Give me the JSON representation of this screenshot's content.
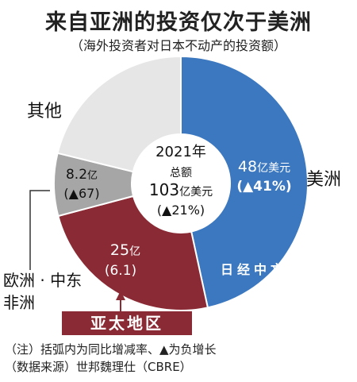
{
  "header": {
    "title": "来自亚洲的投资仅次于美洲",
    "subtitle": "（海外投资者对日本不动产的投资额）"
  },
  "chart_data": {
    "type": "donut",
    "title": "来自亚洲的投资仅次于美洲",
    "subtitle": "（海外投资者对日本不动产的投资额）",
    "total_unit": "亿美元",
    "center": {
      "year": "2021年",
      "label": "总额",
      "value": "103",
      "unit": "亿美元",
      "change": "(▲21%)"
    },
    "slices": [
      {
        "name": "美洲",
        "value": 48,
        "value_text": "48",
        "unit": "亿美元",
        "change": "(▲41%)",
        "color": "#3b78c0"
      },
      {
        "name": "亚太地区",
        "value": 25,
        "value_text": "25",
        "unit": "亿",
        "change": "(6.1)",
        "color": "#8a2a34"
      },
      {
        "name": "欧洲·中东非洲",
        "value": 8.2,
        "value_text": "8.2",
        "unit": "亿",
        "change": "(▲67)",
        "color": "#a6a6a6"
      },
      {
        "name": "其他",
        "value": 21.8,
        "value_text": "",
        "unit": "",
        "change": "",
        "color": "#e6e6e6"
      }
    ],
    "external_labels": {
      "americas": "美洲",
      "other": "其他",
      "emea_line1": "欧洲 · 中东",
      "emea_line2": "非洲",
      "apac": "亚太地区"
    }
  },
  "notes": {
    "line1": "（注）括弧内为同比增减率、▲为负增长",
    "line2": "（数据来源）世邦魏理仕（CBRE）"
  },
  "watermark": "日经中文网"
}
